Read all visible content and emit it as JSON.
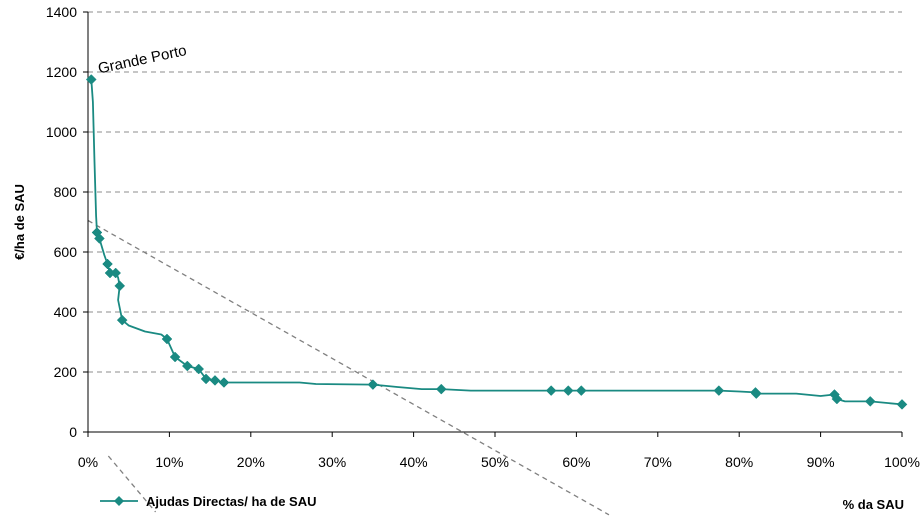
{
  "chart_data": {
    "type": "line",
    "title": "",
    "xlabel": "% da SAU",
    "ylabel": "€/ha de SAU",
    "xlim": [
      0,
      1
    ],
    "ylim": [
      0,
      1400
    ],
    "x_ticks": [
      0,
      0.1,
      0.2,
      0.3,
      0.4,
      0.5,
      0.6,
      0.7,
      0.8,
      0.9,
      1.0
    ],
    "x_tick_labels": [
      "0%",
      "10%",
      "20%",
      "30%",
      "40%",
      "50%",
      "60%",
      "70%",
      "80%",
      "90%",
      "100%"
    ],
    "y_ticks": [
      0,
      200,
      400,
      600,
      800,
      1000,
      1200,
      1400
    ],
    "y_tick_labels": [
      "0",
      "200",
      "400",
      "600",
      "800",
      "1000",
      "1200",
      "1400"
    ],
    "grid": "horizontal dashed",
    "legend_position": "bottom-left",
    "series": [
      {
        "name": "Ajudas Directas/ ha de SAU",
        "color": "#1a8a82",
        "marker": "diamond",
        "points": [
          [
            0.004,
            1175
          ],
          [
            0.011,
            665
          ],
          [
            0.014,
            645
          ],
          [
            0.024,
            560
          ],
          [
            0.027,
            530
          ],
          [
            0.034,
            530
          ],
          [
            0.039,
            487
          ],
          [
            0.042,
            373
          ],
          [
            0.097,
            310
          ],
          [
            0.107,
            250
          ],
          [
            0.122,
            220
          ],
          [
            0.136,
            210
          ],
          [
            0.145,
            177
          ],
          [
            0.156,
            172
          ],
          [
            0.167,
            165
          ],
          [
            0.35,
            158
          ],
          [
            0.434,
            143
          ],
          [
            0.569,
            138
          ],
          [
            0.59,
            138
          ],
          [
            0.606,
            138
          ],
          [
            0.775,
            138
          ],
          [
            0.82,
            132
          ],
          [
            0.821,
            128
          ],
          [
            0.917,
            125
          ],
          [
            0.92,
            110
          ],
          [
            0.961,
            102
          ],
          [
            1.0,
            92
          ]
        ],
        "curve_path": [
          [
            0.004,
            1175
          ],
          [
            0.006,
            1100
          ],
          [
            0.008,
            900
          ],
          [
            0.01,
            720
          ],
          [
            0.011,
            665
          ],
          [
            0.014,
            645
          ],
          [
            0.02,
            590
          ],
          [
            0.024,
            560
          ],
          [
            0.027,
            530
          ],
          [
            0.034,
            530
          ],
          [
            0.037,
            515
          ],
          [
            0.039,
            487
          ],
          [
            0.037,
            440
          ],
          [
            0.042,
            373
          ],
          [
            0.05,
            355
          ],
          [
            0.07,
            335
          ],
          [
            0.09,
            325
          ],
          [
            0.097,
            310
          ],
          [
            0.107,
            250
          ],
          [
            0.122,
            220
          ],
          [
            0.136,
            210
          ],
          [
            0.145,
            177
          ],
          [
            0.156,
            172
          ],
          [
            0.167,
            165
          ],
          [
            0.26,
            165
          ],
          [
            0.28,
            160
          ],
          [
            0.35,
            158
          ],
          [
            0.38,
            150
          ],
          [
            0.41,
            143
          ],
          [
            0.434,
            143
          ],
          [
            0.47,
            138
          ],
          [
            0.569,
            138
          ],
          [
            0.59,
            138
          ],
          [
            0.606,
            138
          ],
          [
            0.775,
            138
          ],
          [
            0.8,
            135
          ],
          [
            0.82,
            132
          ],
          [
            0.821,
            128
          ],
          [
            0.87,
            128
          ],
          [
            0.9,
            120
          ],
          [
            0.917,
            125
          ],
          [
            0.92,
            110
          ],
          [
            0.93,
            102
          ],
          [
            0.961,
            102
          ],
          [
            1.0,
            92
          ]
        ]
      }
    ],
    "reference_line": {
      "style": "dashed",
      "color": "#808080",
      "from": [
        0.0,
        705
      ],
      "to": [
        0.46,
        0
      ]
    },
    "annotations": [
      {
        "text": "Grande Porto",
        "x": 0.004,
        "y": 1175
      }
    ]
  }
}
